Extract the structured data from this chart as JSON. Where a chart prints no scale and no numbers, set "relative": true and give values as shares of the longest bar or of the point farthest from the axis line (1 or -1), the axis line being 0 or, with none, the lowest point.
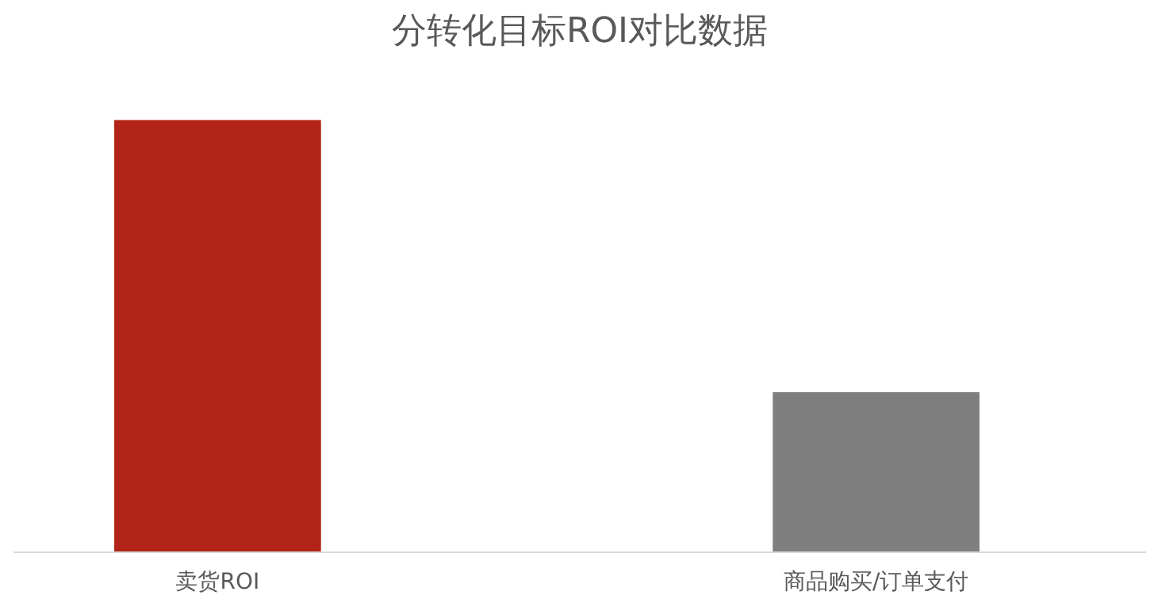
{
  "chart_data": {
    "type": "bar",
    "title": "分转化目标ROI对比数据",
    "categories": [
      "卖货ROI",
      "商品购买/订单支付"
    ],
    "values": [
      1,
      0.37
    ],
    "colors": [
      "#b22418",
      "#7f7f7f"
    ],
    "relative": true
  }
}
